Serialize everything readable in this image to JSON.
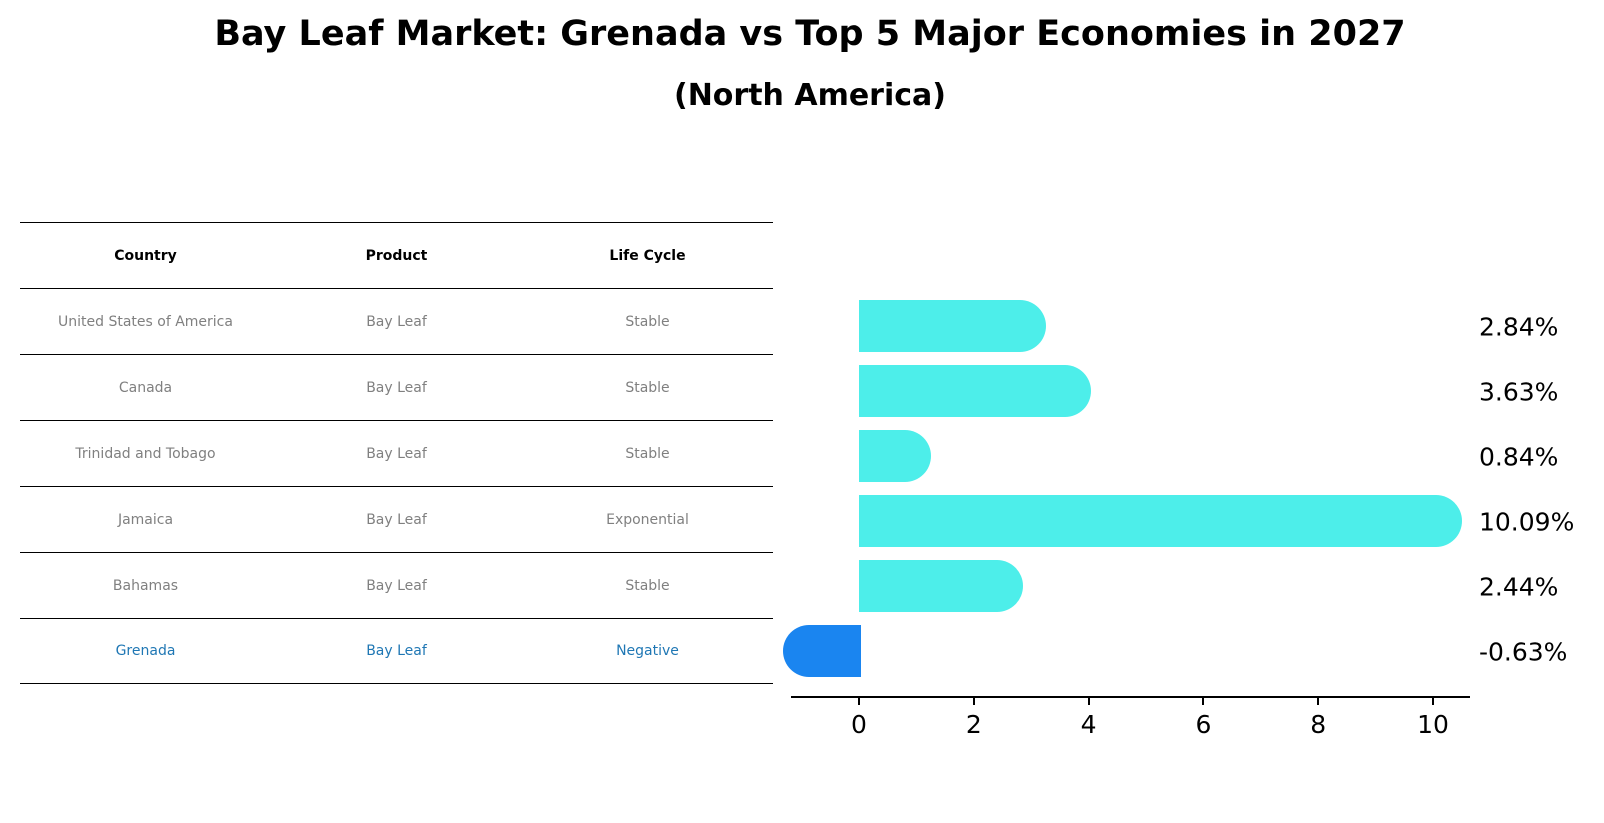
{
  "title": "Bay Leaf Market: Grenada vs Top 5 Major Economies in 2027",
  "subtitle": "(North America)",
  "table": {
    "headers": [
      "Country",
      "Product",
      "Life Cycle"
    ],
    "rows": [
      [
        "United States of America",
        "Bay Leaf",
        "Stable"
      ],
      [
        "Canada",
        "Bay Leaf",
        "Stable"
      ],
      [
        "Trinidad and Tobago",
        "Bay Leaf",
        "Stable"
      ],
      [
        "Jamaica",
        "Bay Leaf",
        "Exponential"
      ],
      [
        "Bahamas",
        "Bay Leaf",
        "Stable"
      ],
      [
        "Grenada",
        "Bay Leaf",
        "Negative"
      ]
    ]
  },
  "colors": {
    "bar": "#4DEEEA",
    "highlight_bar": "#1A85F0",
    "highlight_text": "#1f77b4",
    "row_text": "#808080"
  },
  "chart_data": {
    "type": "bar",
    "orientation": "horizontal",
    "title": "Bay Leaf Market: Grenada vs Top 5 Major Economies in 2027",
    "subtitle": "(North America)",
    "categories": [
      "United States of America",
      "Canada",
      "Trinidad and Tobago",
      "Jamaica",
      "Bahamas",
      "Grenada"
    ],
    "values": [
      2.84,
      3.63,
      0.84,
      10.09,
      2.44,
      -0.63
    ],
    "value_labels": [
      "2.84%",
      "3.63%",
      "0.84%",
      "10.09%",
      "2.44%",
      "-0.63%"
    ],
    "xlabel": "",
    "ylabel": "",
    "xticks": [
      "0",
      "2",
      "4",
      "6",
      "8",
      "10"
    ],
    "xlim": [
      -1.2,
      10.6
    ],
    "grid": false,
    "legend": null
  }
}
